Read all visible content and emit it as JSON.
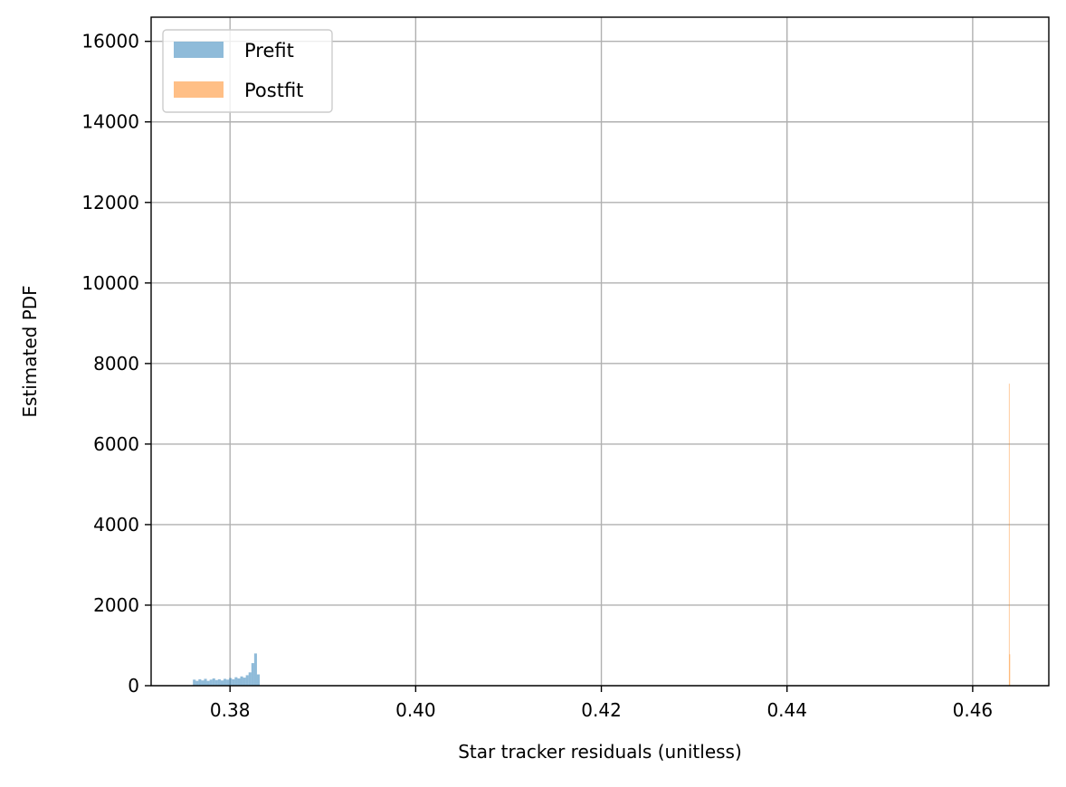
{
  "chart_data": {
    "type": "histogram",
    "title": "",
    "xlabel": "Star tracker residuals (unitless)",
    "ylabel": "Estimated PDF",
    "xlim": [
      0.3715,
      0.4682
    ],
    "ylim": [
      0,
      16600
    ],
    "xticks": [
      0.38,
      0.4,
      0.42,
      0.44,
      0.46
    ],
    "xtick_labels": [
      "0.38",
      "0.40",
      "0.42",
      "0.44",
      "0.46"
    ],
    "yticks": [
      0,
      2000,
      4000,
      6000,
      8000,
      10000,
      12000,
      14000,
      16000
    ],
    "ytick_labels": [
      "0",
      "2000",
      "4000",
      "6000",
      "8000",
      "10000",
      "12000",
      "14000",
      "16000"
    ],
    "grid": true,
    "legend_position": "upper-left",
    "series": [
      {
        "name": "Prefit",
        "color": "#1f77b4",
        "opacity": 0.5,
        "bins": [
          [
            0.376,
            0.3763,
            150
          ],
          [
            0.3763,
            0.3766,
            120
          ],
          [
            0.3766,
            0.3769,
            160
          ],
          [
            0.3769,
            0.3772,
            130
          ],
          [
            0.3772,
            0.3775,
            170
          ],
          [
            0.3775,
            0.3778,
            120
          ],
          [
            0.3778,
            0.3781,
            150
          ],
          [
            0.3781,
            0.3784,
            180
          ],
          [
            0.3784,
            0.3787,
            140
          ],
          [
            0.3787,
            0.379,
            160
          ],
          [
            0.379,
            0.3793,
            130
          ],
          [
            0.3793,
            0.3796,
            170
          ],
          [
            0.3796,
            0.3799,
            150
          ],
          [
            0.3799,
            0.3802,
            190
          ],
          [
            0.3802,
            0.3805,
            160
          ],
          [
            0.3805,
            0.3808,
            210
          ],
          [
            0.3808,
            0.3811,
            180
          ],
          [
            0.3811,
            0.3814,
            230
          ],
          [
            0.3814,
            0.3817,
            200
          ],
          [
            0.3817,
            0.382,
            260
          ],
          [
            0.382,
            0.3823,
            330
          ],
          [
            0.3823,
            0.3826,
            560
          ],
          [
            0.3826,
            0.3829,
            800
          ],
          [
            0.3829,
            0.3832,
            280
          ]
        ]
      },
      {
        "name": "Postfit",
        "color": "#ff7f0e",
        "opacity": 0.5,
        "bins": [
          [
            0.4639,
            0.46396,
            7500
          ],
          [
            0.46396,
            0.46402,
            780
          ]
        ]
      }
    ]
  }
}
